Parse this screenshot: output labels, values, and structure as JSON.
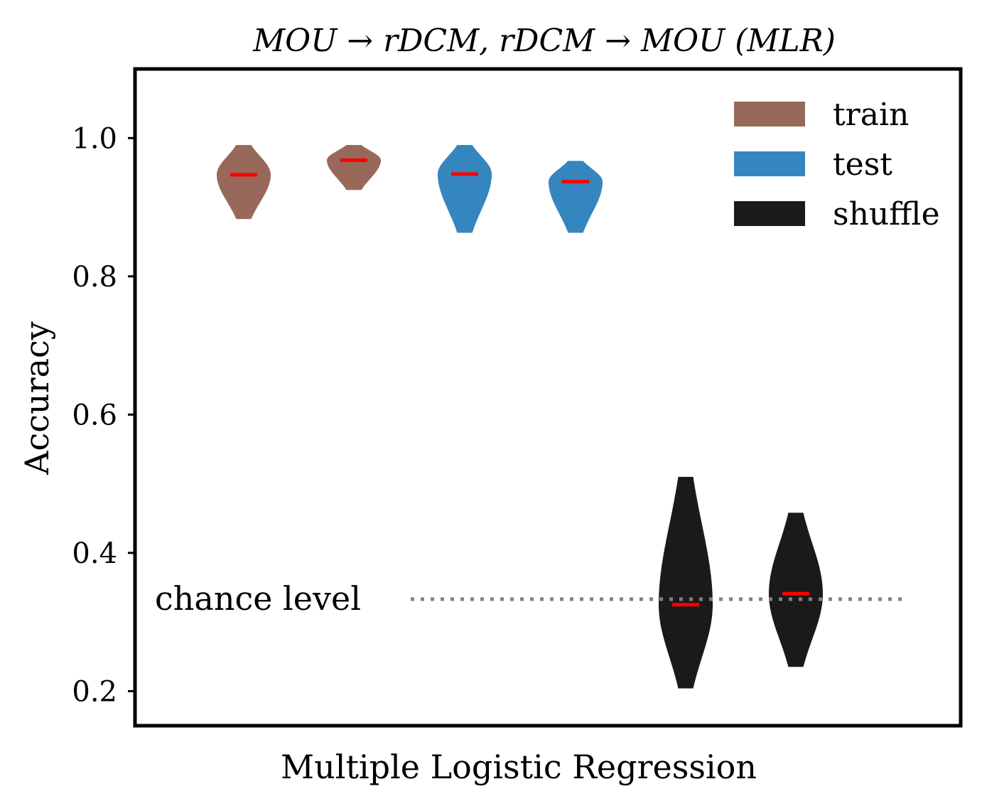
{
  "chart_data": {
    "type": "violin",
    "title": "MOU → rDCM, rDCM → MOU (MLR)",
    "xlabel": "Multiple Logistic Regression",
    "ylabel": "Accuracy",
    "ylim": [
      0.15,
      1.1
    ],
    "yticks": [
      "0.2",
      "0.4",
      "0.6",
      "0.8",
      "1.0"
    ],
    "ytick_values": [
      0.2,
      0.4,
      0.6,
      0.8,
      1.0
    ],
    "grid": false,
    "legend": {
      "placement": "top-right",
      "entries": [
        "train",
        "test",
        "shuffle"
      ]
    },
    "colors": {
      "train": "#98695B",
      "test": "#3585BF",
      "shuffle": "#1A1A1A",
      "median": "#FF0000",
      "chance": "#808080"
    },
    "chance_level": {
      "label": "chance level",
      "value": 0.333
    },
    "violins": [
      {
        "group": "train",
        "min": 0.883,
        "max": 0.99,
        "median": 0.947
      },
      {
        "group": "train",
        "min": 0.925,
        "max": 0.99,
        "median": 0.968
      },
      {
        "group": "test",
        "min": 0.863,
        "max": 0.99,
        "median": 0.948
      },
      {
        "group": "test",
        "min": 0.863,
        "max": 0.967,
        "median": 0.937
      },
      {
        "group": "shuffle",
        "min": 0.204,
        "max": 0.51,
        "median": 0.325
      },
      {
        "group": "shuffle",
        "min": 0.235,
        "max": 0.458,
        "median": 0.341
      }
    ]
  }
}
